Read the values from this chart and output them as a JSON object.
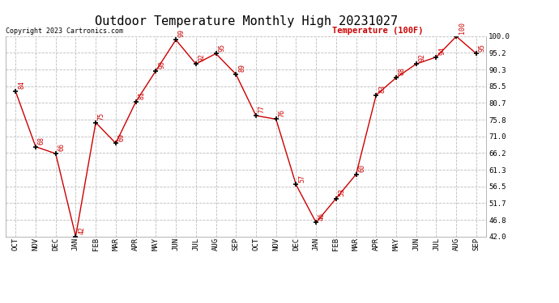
{
  "title": "Outdoor Temperature Monthly High 20231027",
  "copyright_text": "Copyright 2023 Cartronics.com",
  "legend_label": "Temperature (100F)",
  "categories": [
    "OCT",
    "NOV",
    "DEC",
    "JAN",
    "FEB",
    "MAR",
    "APR",
    "MAY",
    "JUN",
    "JUL",
    "AUG",
    "SEP",
    "OCT",
    "NOV",
    "DEC",
    "JAN",
    "FEB",
    "MAR",
    "APR",
    "MAY",
    "JUN",
    "JUL",
    "AUG",
    "SEP"
  ],
  "values": [
    84,
    68,
    66,
    42,
    75,
    69,
    81,
    90,
    99,
    92,
    95,
    89,
    77,
    76,
    57,
    46,
    53,
    60,
    83,
    88,
    92,
    94,
    100,
    95
  ],
  "line_color": "#cc0000",
  "marker_color": "#000000",
  "background_color": "#ffffff",
  "grid_color": "#bbbbbb",
  "ylim_min": 42.0,
  "ylim_max": 100.0,
  "yticks": [
    42.0,
    46.8,
    51.7,
    56.5,
    61.3,
    66.2,
    71.0,
    75.8,
    80.7,
    85.5,
    90.3,
    95.2,
    100.0
  ],
  "title_fontsize": 11,
  "label_fontsize": 6,
  "tick_fontsize": 6.5,
  "copyright_fontsize": 6,
  "legend_fontsize": 7.5
}
